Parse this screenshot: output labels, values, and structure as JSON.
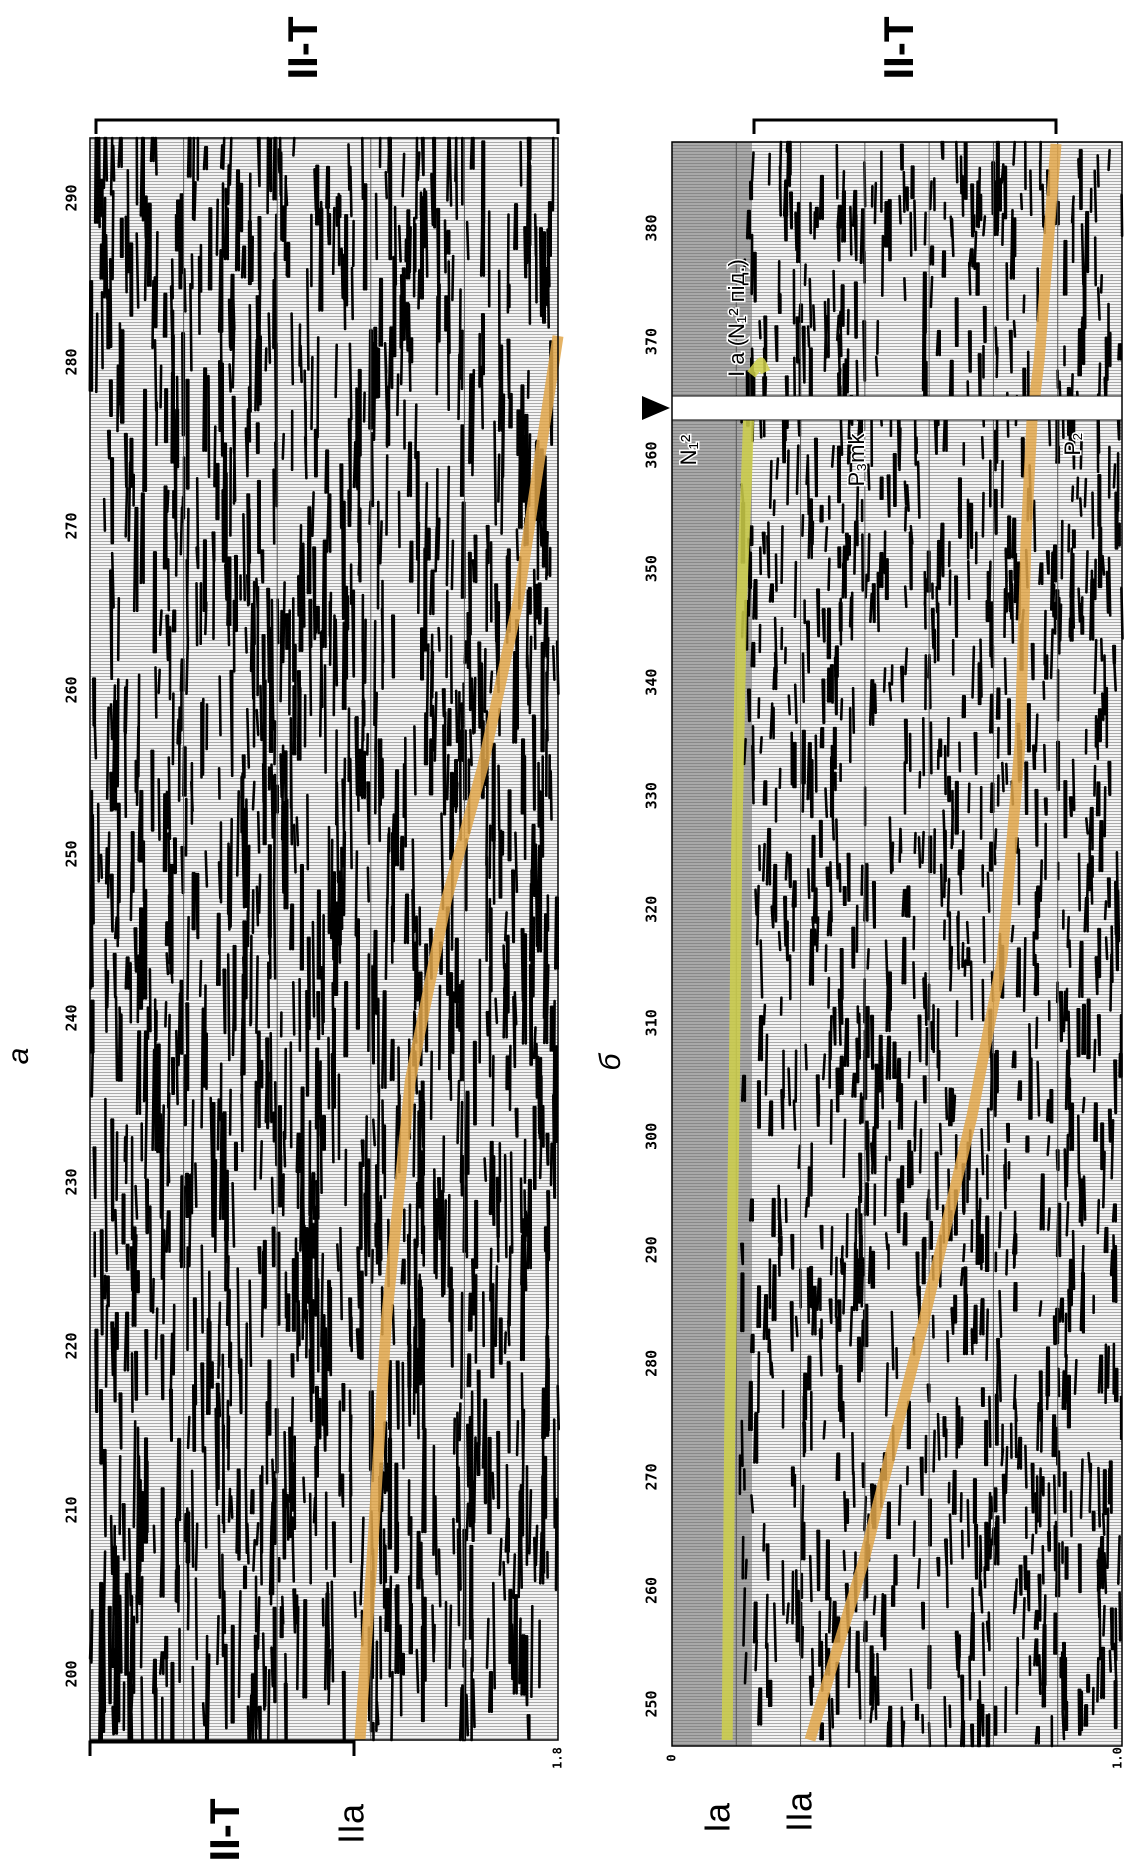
{
  "panels": [
    {
      "caption": "а",
      "trace_ticks": [
        "200",
        "210",
        "220",
        "230",
        "240",
        "250",
        "260",
        "270",
        "280",
        "290"
      ],
      "time_label_end": "1.8",
      "left_labels": [
        "II-T",
        "IIa"
      ],
      "right_label": "II-T"
    },
    {
      "caption": "б",
      "trace_ticks": [
        "250",
        "260",
        "270",
        "280",
        "290",
        "300",
        "310",
        "320",
        "330",
        "340",
        "350",
        "360",
        "370",
        "380"
      ],
      "time_label_start": "0",
      "time_label_end": "1.0",
      "left_labels": [
        "Ia",
        "IIa"
      ],
      "right_label": "II-T",
      "annotations": [
        "N₁²",
        "P₃mk",
        "P₂",
        "I a (N₁² під.)"
      ]
    }
  ]
}
